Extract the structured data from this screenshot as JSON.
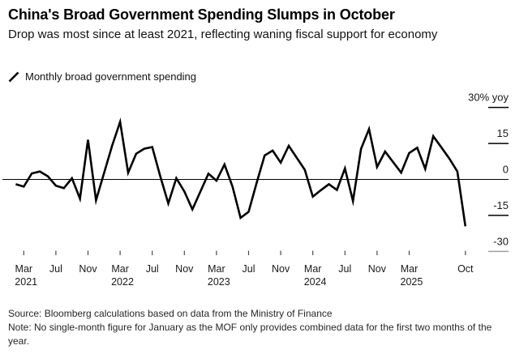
{
  "header": {
    "title": "China's Broad Government Spending Slumps in October",
    "subtitle": "Drop was most since at least 2021, reflecting waning fiscal support for economy"
  },
  "legend": {
    "label": "Monthly broad government spending",
    "series_color": "#000000"
  },
  "chart_data": {
    "type": "line",
    "title": "China's Broad Government Spending Slumps in October",
    "subtitle": "Drop was most since at least 2021, reflecting waning fiscal support for economy",
    "unit": "% yoy",
    "grid": "zero-line-only",
    "legend_position": "top-left",
    "y_axis": {
      "side": "right",
      "label": "30% yoy",
      "ticks": [
        30,
        15,
        0,
        -15,
        -30
      ],
      "range": [
        -32,
        32
      ],
      "zero_line": true
    },
    "x_axis": {
      "note": "monthly, no January values",
      "ticks": [
        {
          "label": "Mar",
          "year": "2021",
          "date": "2021-03"
        },
        {
          "label": "Jul",
          "date": "2021-07"
        },
        {
          "label": "Nov",
          "date": "2021-11"
        },
        {
          "label": "Mar",
          "year": "2022",
          "date": "2022-03"
        },
        {
          "label": "Jul",
          "date": "2022-07"
        },
        {
          "label": "Nov",
          "date": "2022-11"
        },
        {
          "label": "Mar",
          "year": "2023",
          "date": "2023-03"
        },
        {
          "label": "Jul",
          "date": "2023-07"
        },
        {
          "label": "Nov",
          "date": "2023-11"
        },
        {
          "label": "Mar",
          "year": "2024",
          "date": "2024-03"
        },
        {
          "label": "Jul",
          "date": "2024-07"
        },
        {
          "label": "Nov",
          "date": "2024-11"
        },
        {
          "label": "Mar",
          "year": "2025",
          "date": "2025-03"
        },
        {
          "label": "Oct",
          "date": "2025-10"
        }
      ]
    },
    "series": [
      {
        "name": "Monthly broad government spending",
        "color": "#000000",
        "points": [
          {
            "date": "2021-02",
            "value": -2
          },
          {
            "date": "2021-03",
            "value": -3
          },
          {
            "date": "2021-04",
            "value": 2.5
          },
          {
            "date": "2021-05",
            "value": 3.3
          },
          {
            "date": "2021-06",
            "value": 1.3
          },
          {
            "date": "2021-07",
            "value": -2.6
          },
          {
            "date": "2021-08",
            "value": -3.6
          },
          {
            "date": "2021-09",
            "value": 0.5
          },
          {
            "date": "2021-10",
            "value": -8
          },
          {
            "date": "2021-11",
            "value": 16.5
          },
          {
            "date": "2021-12",
            "value": -8.7
          },
          {
            "date": "2022-02",
            "value": 14
          },
          {
            "date": "2022-03",
            "value": 24
          },
          {
            "date": "2022-04",
            "value": 2.8
          },
          {
            "date": "2022-05",
            "value": 10.7
          },
          {
            "date": "2022-06",
            "value": 12.8
          },
          {
            "date": "2022-07",
            "value": 13.5
          },
          {
            "date": "2022-08",
            "value": 1.3
          },
          {
            "date": "2022-09",
            "value": -10
          },
          {
            "date": "2022-10",
            "value": 0.5
          },
          {
            "date": "2022-11",
            "value": -5
          },
          {
            "date": "2022-12",
            "value": -12.5
          },
          {
            "date": "2023-02",
            "value": 2.4
          },
          {
            "date": "2023-03",
            "value": -0.5
          },
          {
            "date": "2023-04",
            "value": 6.2
          },
          {
            "date": "2023-05",
            "value": -3
          },
          {
            "date": "2023-06",
            "value": -16
          },
          {
            "date": "2023-07",
            "value": -13.5
          },
          {
            "date": "2023-08",
            "value": -1.5
          },
          {
            "date": "2023-09",
            "value": 10
          },
          {
            "date": "2023-10",
            "value": 12
          },
          {
            "date": "2023-11",
            "value": 7
          },
          {
            "date": "2023-12",
            "value": 14
          },
          {
            "date": "2024-02",
            "value": 4
          },
          {
            "date": "2024-03",
            "value": -7.2
          },
          {
            "date": "2024-04",
            "value": -4.5
          },
          {
            "date": "2024-05",
            "value": -2
          },
          {
            "date": "2024-06",
            "value": -4.4
          },
          {
            "date": "2024-07",
            "value": 4.6
          },
          {
            "date": "2024-08",
            "value": -9
          },
          {
            "date": "2024-09",
            "value": 12.7
          },
          {
            "date": "2024-10",
            "value": 21
          },
          {
            "date": "2024-11",
            "value": 5.2
          },
          {
            "date": "2024-12",
            "value": 11.6
          },
          {
            "date": "2025-02",
            "value": 2.8
          },
          {
            "date": "2025-03",
            "value": 11
          },
          {
            "date": "2025-04",
            "value": 13.2
          },
          {
            "date": "2025-05",
            "value": 4.4
          },
          {
            "date": "2025-06",
            "value": 18
          },
          {
            "date": "2025-07",
            "value": 13.4
          },
          {
            "date": "2025-08",
            "value": 8.7
          },
          {
            "date": "2025-09",
            "value": 3.3
          },
          {
            "date": "2025-10",
            "value": -19.5
          }
        ]
      }
    ]
  },
  "footer": {
    "source": "Source: Bloomberg calculations based on data from the Ministry of Finance",
    "note": "Note: No single-month figure for January as the MOF only provides combined data for the first two months of the year."
  }
}
